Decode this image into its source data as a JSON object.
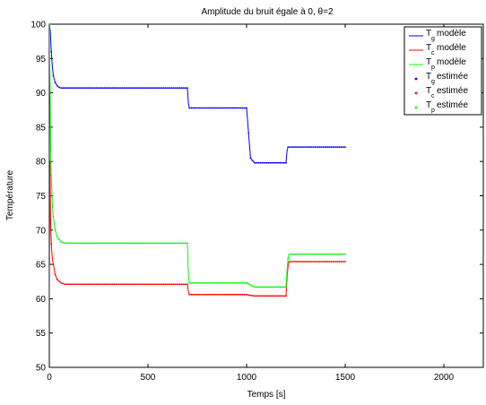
{
  "chart_data": {
    "type": "line",
    "title": "Amplitude du bruit égale à 0, θ=2",
    "xlabel": "Temps [s]",
    "ylabel": "Température",
    "xlim": [
      0,
      2200
    ],
    "ylim": [
      50,
      100
    ],
    "xticks": [
      0,
      500,
      1000,
      1500,
      2000
    ],
    "yticks": [
      50,
      55,
      60,
      65,
      70,
      75,
      80,
      85,
      90,
      95,
      100
    ],
    "grid": false,
    "legend_position": "top-right",
    "series": [
      {
        "name": "T_g modèle",
        "legend_main": "T",
        "legend_sub": "g",
        "legend_suffix": "modèle",
        "color": "#0000ff",
        "style": "line",
        "x": [
          0,
          5,
          10,
          15,
          20,
          30,
          40,
          50,
          60,
          80,
          100,
          700,
          705,
          710,
          1000,
          1020,
          1040,
          1200,
          1205,
          1210,
          1500
        ],
        "y": [
          100,
          99,
          96,
          94,
          92.5,
          91.5,
          91,
          90.8,
          90.7,
          90.7,
          90.7,
          90.7,
          88.5,
          87.8,
          87.8,
          80.5,
          79.8,
          79.8,
          81.5,
          82.1,
          82.1
        ]
      },
      {
        "name": "T_c modèle",
        "legend_main": "T",
        "legend_sub": "c",
        "legend_suffix": "modèle",
        "color": "#ff0000",
        "style": "line",
        "x": [
          0,
          3,
          6,
          10,
          15,
          20,
          30,
          40,
          60,
          80,
          100,
          700,
          705,
          710,
          1000,
          1020,
          1040,
          1200,
          1205,
          1210,
          1215,
          1500
        ],
        "y": [
          60,
          80,
          72,
          68,
          66,
          65,
          63.5,
          62.8,
          62.3,
          62.1,
          62.1,
          62.1,
          61,
          60.6,
          60.6,
          60.5,
          60.4,
          60.4,
          63,
          64.8,
          65.4,
          65.4
        ]
      },
      {
        "name": "T_p modèle",
        "legend_main": "T",
        "legend_sub": "p",
        "legend_suffix": "modèle",
        "color": "#00ff00",
        "style": "line",
        "x": [
          0,
          2,
          4,
          7,
          10,
          15,
          20,
          30,
          40,
          60,
          80,
          100,
          700,
          703,
          706,
          710,
          1000,
          1020,
          1040,
          1200,
          1205,
          1210,
          1215,
          1500
        ],
        "y": [
          100,
          96,
          90,
          82,
          78,
          74,
          72,
          70,
          69,
          68.3,
          68.1,
          68.1,
          68.1,
          65,
          63,
          62.3,
          62.3,
          62,
          61.7,
          61.7,
          64,
          65.8,
          66.5,
          66.5
        ]
      },
      {
        "name": "T_g estimée",
        "legend_main": "T",
        "legend_sub": "g",
        "legend_suffix": "estimée",
        "color": "#0000ff",
        "style": "dots",
        "x": [
          0,
          5,
          10,
          15,
          20,
          30,
          40,
          50,
          60,
          80,
          100,
          700,
          705,
          710,
          1000,
          1020,
          1040,
          1200,
          1205,
          1210,
          1500
        ],
        "y": [
          100,
          99,
          96,
          94,
          92.5,
          91.5,
          91,
          90.8,
          90.7,
          90.7,
          90.7,
          90.7,
          88.5,
          87.8,
          87.8,
          80.5,
          79.8,
          79.8,
          81.5,
          82.1,
          82.1
        ]
      },
      {
        "name": "T_c estimée",
        "legend_main": "T",
        "legend_sub": "c",
        "legend_suffix": "estimée",
        "color": "#ff0000",
        "style": "dots",
        "x": [
          0,
          3,
          6,
          10,
          15,
          20,
          30,
          40,
          60,
          80,
          100,
          700,
          705,
          710,
          1000,
          1020,
          1040,
          1200,
          1205,
          1210,
          1215,
          1500
        ],
        "y": [
          60,
          80,
          72,
          68,
          66,
          65,
          63.5,
          62.8,
          62.3,
          62.1,
          62.1,
          62.1,
          61,
          60.6,
          60.6,
          60.5,
          60.4,
          60.4,
          63,
          64.8,
          65.4,
          65.4
        ]
      },
      {
        "name": "T_p estimée",
        "legend_main": "T",
        "legend_sub": "p",
        "legend_suffix": "estimée",
        "color": "#00ff00",
        "style": "dots",
        "x": [
          0,
          2,
          4,
          7,
          10,
          15,
          20,
          30,
          40,
          60,
          80,
          100,
          700,
          703,
          706,
          710,
          1000,
          1020,
          1040,
          1200,
          1205,
          1210,
          1215,
          1500
        ],
        "y": [
          100,
          96,
          90,
          82,
          78,
          74,
          72,
          70,
          69,
          68.3,
          68.1,
          68.1,
          68.1,
          65,
          63,
          62.3,
          62.3,
          62,
          61.7,
          61.7,
          64,
          65.8,
          66.5,
          66.5
        ]
      }
    ]
  }
}
